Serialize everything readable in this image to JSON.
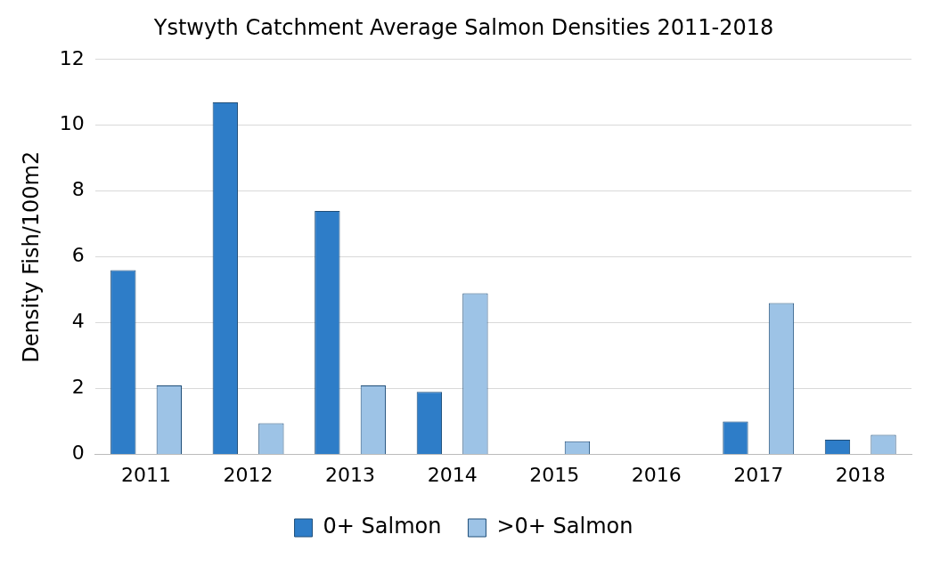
{
  "chart_data": {
    "type": "bar",
    "title": "Ystwyth Catchment Average Salmon Densities 2011-2018",
    "ylabel": "Density Fish/100m2",
    "categories": [
      "2011",
      "2012",
      "2013",
      "2014",
      "2015",
      "2016",
      "2017",
      "2018"
    ],
    "series": [
      {
        "name": "0+ Salmon",
        "color": "#2e7dc8",
        "values": [
          5.6,
          10.7,
          7.4,
          1.9,
          0,
          0,
          1.0,
          0.45
        ]
      },
      {
        "name": ">0+ Salmon",
        "color": "#9dc3e6",
        "values": [
          2.1,
          0.95,
          2.1,
          4.9,
          0.4,
          0,
          4.6,
          0.6
        ]
      }
    ],
    "ylim": [
      0,
      12
    ],
    "yticks": [
      0,
      2,
      4,
      6,
      8,
      10,
      12
    ],
    "grid": "y",
    "legend": "bottom"
  }
}
